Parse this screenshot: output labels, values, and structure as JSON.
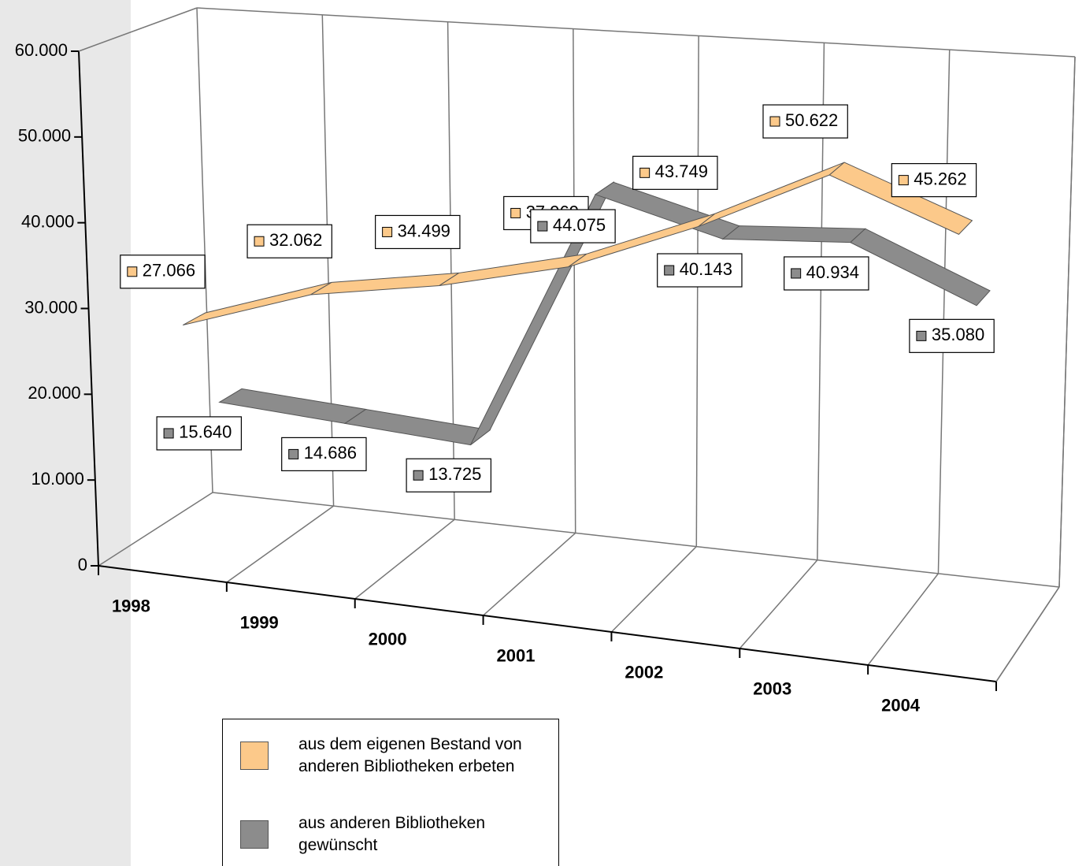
{
  "chart_data": {
    "type": "line3d",
    "categories": [
      "1998",
      "1999",
      "2000",
      "2001",
      "2002",
      "2003",
      "2004"
    ],
    "series": [
      {
        "name": "aus dem eigenen Bestand von anderen Bibliotheken erbeten",
        "color": "#fcc98a",
        "values": [
          27066,
          32062,
          34499,
          37969,
          43749,
          50622,
          45262
        ],
        "value_labels": [
          "27.066",
          "32.062",
          "34.499",
          "37.969",
          "43.749",
          "50.622",
          "45.262"
        ]
      },
      {
        "name": "aus anderen Bibliotheken gewünscht",
        "color": "#8c8c8c",
        "values": [
          15640,
          14686,
          13725,
          44075,
          40143,
          40934,
          35080
        ],
        "value_labels": [
          "15.640",
          "14.686",
          "13.725",
          "44.075",
          "40.143",
          "40.934",
          "35.080"
        ]
      }
    ],
    "ylim": [
      0,
      60000
    ],
    "yticks": [
      0,
      {
        "value": 10000,
        "label": "10.000"
      },
      {
        "value": 20000,
        "label": "20.000"
      },
      {
        "value": 30000,
        "label": "30.000"
      },
      {
        "value": 40000,
        "label": "40.000"
      },
      {
        "value": 50000,
        "label": "50.000"
      },
      {
        "value": 60000,
        "label": "60.000"
      }
    ],
    "legend": "bottom-left"
  }
}
